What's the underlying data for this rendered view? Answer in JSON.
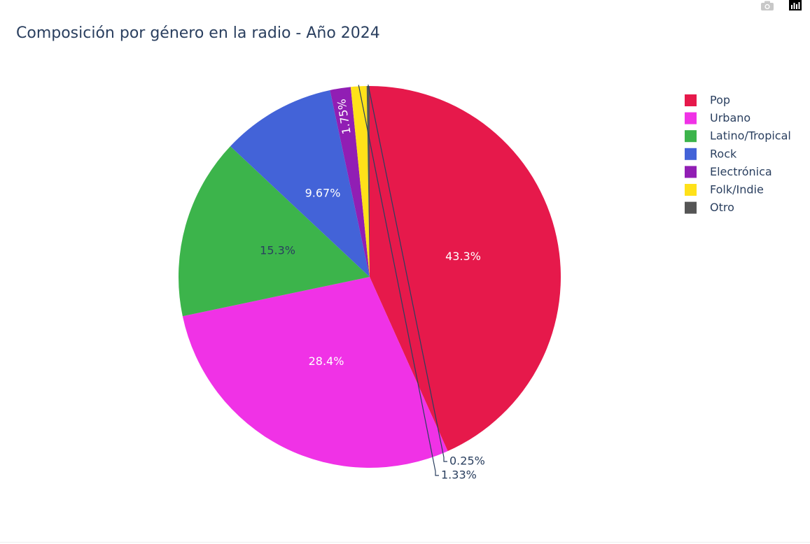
{
  "chart_data": {
    "type": "pie",
    "title": "Composición por género en la radio - Año 2024",
    "legend_position": "top-right",
    "slices": [
      {
        "label": "Pop",
        "value": 43.3,
        "text": "43.3%",
        "color": "#e6194b",
        "text_color": "#ffffff"
      },
      {
        "label": "Urbano",
        "value": 28.4,
        "text": "28.4%",
        "color": "#f032e6",
        "text_color": "#ffffff"
      },
      {
        "label": "Latino/Tropical",
        "value": 15.3,
        "text": "15.3%",
        "color": "#3cb44b",
        "text_color": "#2a3f5f"
      },
      {
        "label": "Rock",
        "value": 9.67,
        "text": "9.67%",
        "color": "#4363d8",
        "text_color": "#ffffff"
      },
      {
        "label": "Electrónica",
        "value": 1.75,
        "text": "1.75%",
        "color": "#911eb4",
        "text_color": "#ffffff"
      },
      {
        "label": "Folk/Indie",
        "value": 1.33,
        "text": "1.33%",
        "color": "#ffe119",
        "text_color": "#2a3f5f"
      },
      {
        "label": "Otro",
        "value": 0.25,
        "text": "0.25%",
        "color": "#555555",
        "text_color": "#2a3f5f"
      }
    ]
  },
  "toolbar": {
    "camera_icon": "camera-icon",
    "plotly_logo": "plotly-logo-icon"
  }
}
